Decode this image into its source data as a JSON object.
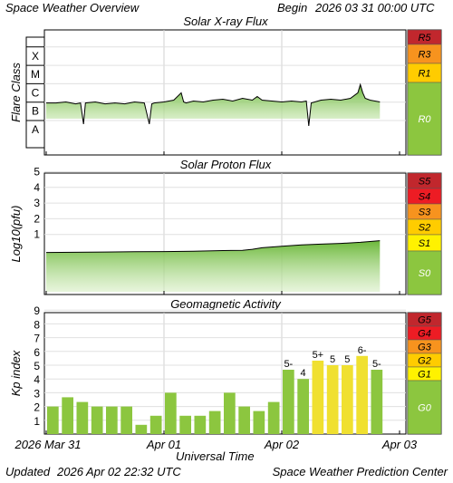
{
  "header": {
    "title": "Space Weather Overview",
    "begin_label": "Begin",
    "begin_date": "2026 03 31 00:00 UTC"
  },
  "footer": {
    "updated_label": "Updated",
    "updated_date": "2026 Apr 02 22:32 UTC",
    "center": "Space Weather Prediction Center"
  },
  "x_axis": {
    "label": "Universal Time",
    "ticks": [
      "2026 Mar 31",
      "Apr 01",
      "Apr 02",
      "Apr 03"
    ]
  },
  "colors": {
    "green_scale": "#8cc63f",
    "yellow_scale": "#fff200",
    "gold_scale": "#ffcc00",
    "orange_scale": "#f7931e",
    "darkorange_scale": "#f05a24",
    "red_scale": "#ed1c24",
    "darkred_scale": "#c1272d",
    "kp_green": "#8cc63f",
    "kp_yellow": "#f0e030"
  },
  "chart_data": [
    {
      "type": "line",
      "title": "Solar X-ray Flux",
      "ylabel": "Flare Class",
      "y_categories": [
        "A",
        "B",
        "C",
        "M",
        "X"
      ],
      "scale_labels": [
        "R5",
        "R3",
        "R1",
        "R0"
      ],
      "x_range_hours": [
        0,
        72
      ],
      "series": [
        {
          "x": [
            0,
            2,
            4,
            6,
            7,
            7.6,
            8,
            10,
            12,
            14,
            16,
            18,
            20,
            21,
            21.5,
            22,
            24,
            26,
            27.5,
            28,
            28.5,
            30,
            32,
            34,
            36,
            38,
            40,
            42,
            43,
            44,
            46,
            48,
            50,
            52,
            53,
            53.5,
            54,
            56,
            58,
            60,
            62,
            63.5,
            64,
            64.5,
            65,
            66,
            67,
            68
          ],
          "y": [
            -6.55,
            -6.55,
            -6.5,
            -6.6,
            -6.55,
            -7.7,
            -6.55,
            -6.5,
            -6.6,
            -6.55,
            -6.6,
            -6.5,
            -6.55,
            -7.7,
            -6.6,
            -6.55,
            -6.5,
            -6.4,
            -6.0,
            -6.5,
            -6.55,
            -6.45,
            -6.5,
            -6.4,
            -6.35,
            -6.45,
            -6.3,
            -6.4,
            -6.2,
            -6.4,
            -6.45,
            -6.5,
            -6.45,
            -6.5,
            -6.45,
            -7.8,
            -6.55,
            -6.4,
            -6.35,
            -6.4,
            -6.3,
            -6.0,
            -5.55,
            -6.0,
            -6.3,
            -6.4,
            -6.45,
            -6.5
          ]
        }
      ]
    },
    {
      "type": "line",
      "title": "Solar Proton Flux",
      "ylabel": "Log10(pfu)",
      "y_ticks": [
        "5",
        "4",
        "3",
        "2",
        "1"
      ],
      "scale_labels": [
        "S5",
        "S4",
        "S3",
        "S2",
        "S1",
        "S0"
      ],
      "x_range_hours": [
        0,
        72
      ],
      "series": [
        {
          "x": [
            0,
            6,
            12,
            18,
            24,
            30,
            36,
            40,
            42,
            44,
            48,
            52,
            56,
            60,
            64,
            68
          ],
          "y": [
            -0.15,
            -0.14,
            -0.12,
            -0.1,
            -0.09,
            -0.07,
            -0.03,
            -0.02,
            0.05,
            0.15,
            0.25,
            0.33,
            0.38,
            0.43,
            0.5,
            0.6
          ]
        }
      ]
    },
    {
      "type": "bar",
      "title": "Geomagnetic Activity",
      "ylabel": "Kp index",
      "y_ticks": [
        "9",
        "8",
        "7",
        "6",
        "5",
        "4",
        "3",
        "2",
        "1"
      ],
      "scale_labels": [
        "G5",
        "G4",
        "G3",
        "G2",
        "G1",
        "G0"
      ],
      "ylim": [
        0,
        9
      ],
      "values": [
        2.0,
        2.67,
        2.33,
        2.0,
        2.0,
        2.0,
        0.67,
        1.33,
        3.0,
        1.33,
        1.33,
        1.67,
        3.0,
        2.0,
        1.67,
        2.33,
        4.67,
        4.0,
        5.33,
        5.0,
        5.0,
        5.67,
        4.67
      ],
      "labels": [
        "",
        "",
        "",
        "",
        "",
        "",
        "",
        "",
        "",
        "",
        "",
        "",
        "",
        "",
        "",
        "",
        "5-",
        "4",
        "5+",
        "5",
        "5",
        "6-",
        "5-"
      ]
    }
  ]
}
